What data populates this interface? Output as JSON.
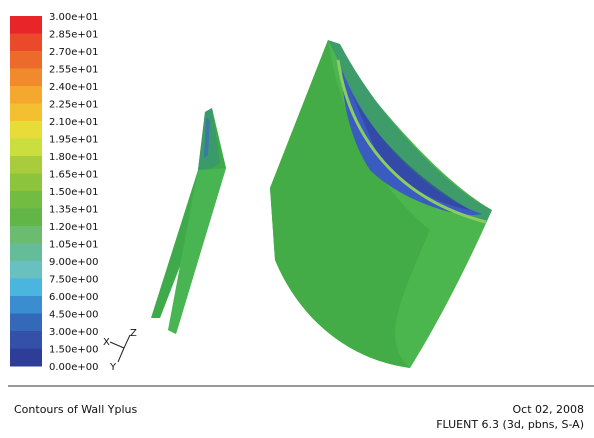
{
  "colorbar": {
    "labels": [
      "3.00e+01",
      "2.85e+01",
      "2.70e+01",
      "2.55e+01",
      "2.40e+01",
      "2.25e+01",
      "2.10e+01",
      "1.95e+01",
      "1.80e+01",
      "1.65e+01",
      "1.50e+01",
      "1.35e+01",
      "1.20e+01",
      "1.05e+01",
      "9.00e+00",
      "7.50e+00",
      "6.00e+00",
      "4.50e+00",
      "3.00e+00",
      "1.50e+00",
      "0.00e+00"
    ],
    "colors": [
      "#e8262a",
      "#ea4a2a",
      "#ec6a2a",
      "#f08a2c",
      "#f4a82e",
      "#f2c030",
      "#e8dc38",
      "#cade3e",
      "#a8cc3c",
      "#8cc43e",
      "#72bc42",
      "#62b648",
      "#6cbc70",
      "#64bc98",
      "#68c0c0",
      "#4ab6e0",
      "#3a8ed0",
      "#3468b8",
      "#3450a8",
      "#2e3e98"
    ]
  },
  "axes": {
    "x": "X",
    "y": "Y",
    "z": "Z"
  },
  "footer": {
    "title": "Contours of Wall Yplus",
    "date": "Oct 02, 2008",
    "version": "FLUENT 6.3 (3d, pbns, S-A)"
  }
}
